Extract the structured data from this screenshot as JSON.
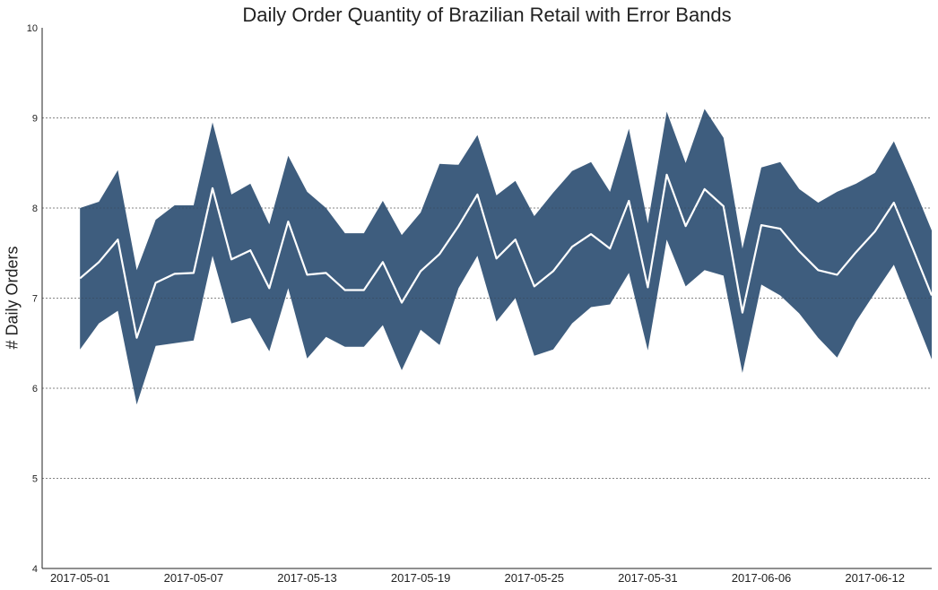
{
  "chart_data": {
    "type": "area",
    "title": "Daily Order Quantity of Brazilian Retail with Error Bands",
    "xlabel": "",
    "ylabel": "# Daily Orders",
    "ylim": [
      4,
      10
    ],
    "yticks": [
      4,
      5,
      6,
      7,
      8,
      9,
      10
    ],
    "xlim": [
      "2017-04-29",
      "2017-06-15"
    ],
    "xticks": [
      "2017-05-01",
      "2017-05-07",
      "2017-05-13",
      "2017-05-19",
      "2017-05-25",
      "2017-05-31",
      "2017-06-06",
      "2017-06-12"
    ],
    "grid": "horizontal dashed",
    "colors": {
      "band": "#3e5d7e",
      "line": "#ffffff",
      "grid": "#888888",
      "axis": "#222222"
    },
    "x": [
      "2017-05-01",
      "2017-05-02",
      "2017-05-03",
      "2017-05-04",
      "2017-05-05",
      "2017-05-06",
      "2017-05-07",
      "2017-05-08",
      "2017-05-09",
      "2017-05-10",
      "2017-05-11",
      "2017-05-12",
      "2017-05-13",
      "2017-05-14",
      "2017-05-15",
      "2017-05-16",
      "2017-05-17",
      "2017-05-18",
      "2017-05-19",
      "2017-05-20",
      "2017-05-21",
      "2017-05-22",
      "2017-05-23",
      "2017-05-24",
      "2017-05-25",
      "2017-05-26",
      "2017-05-27",
      "2017-05-28",
      "2017-05-29",
      "2017-05-30",
      "2017-05-31",
      "2017-06-01",
      "2017-06-02",
      "2017-06-03",
      "2017-06-04",
      "2017-06-05",
      "2017-06-06",
      "2017-06-07",
      "2017-06-08",
      "2017-06-09",
      "2017-06-10",
      "2017-06-11",
      "2017-06-12",
      "2017-06-13",
      "2017-06-14",
      "2017-06-15"
    ],
    "series": [
      {
        "values": [
          7.22,
          7.4,
          7.65,
          6.56,
          7.17,
          7.27,
          7.28,
          8.22,
          7.43,
          7.53,
          7.11,
          7.85,
          7.26,
          7.28,
          7.09,
          7.09,
          7.4,
          6.95,
          7.3,
          7.49,
          7.8,
          8.15,
          7.44,
          7.65,
          7.13,
          7.3,
          7.57,
          7.71,
          7.55,
          8.08,
          7.12,
          8.37,
          7.8,
          8.21,
          8.02,
          6.84,
          7.81,
          7.77,
          7.52,
          7.31,
          7.26,
          7.51,
          7.74,
          8.06,
          7.55,
          7.03
        ]
      }
    ],
    "band_upper": [
      8.0,
      8.07,
      8.42,
      7.31,
      7.87,
      8.03,
      8.03,
      8.95,
      8.15,
      8.27,
      7.82,
      8.58,
      8.18,
      8.0,
      7.72,
      7.72,
      8.08,
      7.7,
      7.95,
      8.49,
      8.48,
      8.81,
      8.14,
      8.3,
      7.91,
      8.17,
      8.41,
      8.51,
      8.18,
      8.88,
      7.83,
      9.07,
      8.5,
      9.1,
      8.78,
      7.55,
      8.45,
      8.51,
      8.21,
      8.06,
      8.18,
      8.27,
      8.39,
      8.74,
      8.26,
      7.75
    ],
    "band_lower": [
      6.43,
      6.72,
      6.86,
      5.82,
      6.47,
      6.5,
      6.53,
      7.47,
      6.72,
      6.78,
      6.41,
      7.11,
      6.33,
      6.57,
      6.46,
      6.46,
      6.7,
      6.2,
      6.65,
      6.48,
      7.11,
      7.47,
      6.74,
      7.0,
      6.36,
      6.43,
      6.72,
      6.9,
      6.93,
      7.28,
      6.42,
      7.65,
      7.13,
      7.31,
      7.25,
      6.17,
      7.15,
      7.03,
      6.83,
      6.56,
      6.34,
      6.74,
      7.06,
      7.37,
      6.85,
      6.32
    ]
  }
}
